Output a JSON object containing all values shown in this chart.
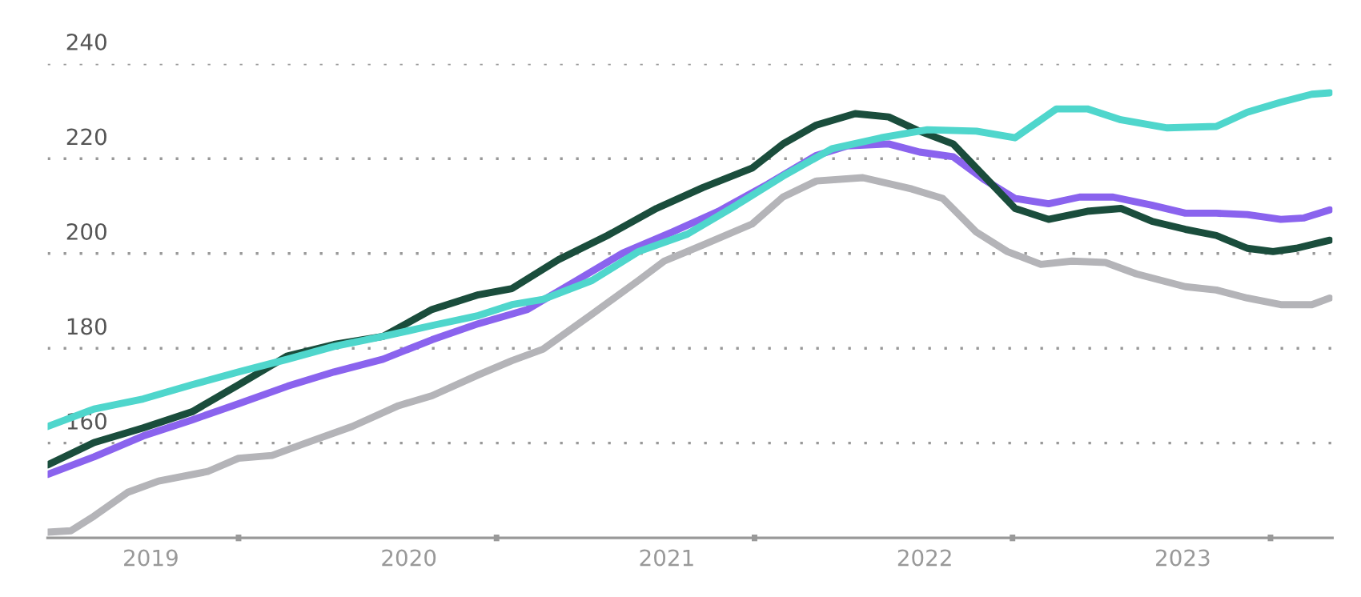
{
  "chart_data": {
    "type": "line",
    "xlim": [
      2018.6,
      2023.58
    ],
    "xticks": [
      2019,
      2020,
      2021,
      2022,
      2023,
      {
        "value": 2019.34,
        "label": null
      },
      {
        "value": 2020.34,
        "label": null
      },
      {
        "value": 2021.34,
        "label": null
      },
      {
        "value": 2022.34,
        "label": null
      },
      {
        "value": 2023.34,
        "label": null
      }
    ],
    "ylim": [
      140,
      240
    ],
    "yticks": [
      160,
      180,
      200,
      220,
      240
    ],
    "grid": "y",
    "line_style": "solid",
    "series": [
      {
        "color": "#b4b4b8",
        "x": [
          2018.6,
          2018.69,
          2018.78,
          2018.91,
          2019.03,
          2019.22,
          2019.34,
          2019.47,
          2019.59,
          2019.78,
          2019.96,
          2020.09,
          2020.27,
          2020.4,
          2020.52,
          2020.71,
          2020.89,
          2020.99,
          2021.14,
          2021.33,
          2021.45,
          2021.58,
          2021.76,
          2021.95,
          2022.07,
          2022.2,
          2022.32,
          2022.45,
          2022.57,
          2022.7,
          2022.82,
          2023.01,
          2023.13,
          2023.25,
          2023.38,
          2023.5,
          2023.57
        ],
        "values": [
          141.2,
          141.5,
          144.6,
          149.6,
          152,
          154,
          156.8,
          157.4,
          159.8,
          163.5,
          167.9,
          170,
          174.4,
          177.4,
          179.8,
          187.2,
          194.3,
          198.4,
          201.8,
          206.2,
          211.9,
          215.3,
          216,
          213.6,
          211.6,
          204.5,
          200.4,
          197.7,
          198.4,
          198.1,
          195.7,
          193,
          192.3,
          190.6,
          189.2,
          189.2,
          190.6
        ]
      },
      {
        "color": "#8a63ee",
        "x": [
          2018.6,
          2018.78,
          2018.97,
          2019.16,
          2019.34,
          2019.53,
          2019.71,
          2019.9,
          2020.09,
          2020.27,
          2020.46,
          2020.65,
          2020.83,
          2021.02,
          2021.2,
          2021.39,
          2021.58,
          2021.7,
          2021.86,
          2021.98,
          2022.11,
          2022.23,
          2022.35,
          2022.48,
          2022.6,
          2022.73,
          2022.88,
          2023.01,
          2023.13,
          2023.25,
          2023.38,
          2023.47,
          2023.57
        ],
        "values": [
          153.4,
          157.1,
          161.5,
          164.9,
          168.3,
          172,
          175,
          177.7,
          181.8,
          185.2,
          188.2,
          194.3,
          200.1,
          204.5,
          208.9,
          214.6,
          220.7,
          222.7,
          223.1,
          221.4,
          220.4,
          215.6,
          211.6,
          210.5,
          211.9,
          211.9,
          210.2,
          208.5,
          208.5,
          208.2,
          207.2,
          207.5,
          209.2
        ]
      },
      {
        "color": "#1a4d3c",
        "x": [
          2018.6,
          2018.78,
          2018.97,
          2019.16,
          2019.34,
          2019.53,
          2019.71,
          2019.9,
          2020.09,
          2020.27,
          2020.4,
          2020.58,
          2020.77,
          2020.96,
          2021.14,
          2021.33,
          2021.45,
          2021.58,
          2021.73,
          2021.86,
          2021.98,
          2022.11,
          2022.23,
          2022.35,
          2022.48,
          2022.63,
          2022.76,
          2022.88,
          2023.01,
          2023.13,
          2023.25,
          2023.35,
          2023.44,
          2023.57
        ],
        "values": [
          155.4,
          160.1,
          163.2,
          166.6,
          172.3,
          178.4,
          180.8,
          182.5,
          188.2,
          191.3,
          192.6,
          198.7,
          203.8,
          209.5,
          213.9,
          218,
          223.1,
          227.1,
          229.5,
          228.8,
          225.8,
          223.1,
          216.3,
          209.5,
          207.2,
          208.9,
          209.5,
          206.8,
          205.1,
          203.8,
          201.1,
          200.4,
          201.1,
          202.8
        ]
      },
      {
        "color": "#4fd6cc",
        "x": [
          2018.6,
          2018.78,
          2018.97,
          2019.16,
          2019.34,
          2019.53,
          2019.71,
          2019.9,
          2020.09,
          2020.27,
          2020.4,
          2020.52,
          2020.71,
          2020.89,
          2021.08,
          2021.27,
          2021.45,
          2021.64,
          2021.83,
          2022.01,
          2022.2,
          2022.35,
          2022.51,
          2022.63,
          2022.76,
          2022.94,
          2023.13,
          2023.25,
          2023.38,
          2023.5,
          2023.57
        ],
        "values": [
          163.5,
          167.2,
          169.3,
          172.3,
          175,
          177.7,
          180.4,
          182.5,
          184.8,
          186.9,
          189.2,
          190.3,
          194.3,
          200.4,
          204.1,
          210.2,
          216.3,
          222.1,
          224.4,
          226.1,
          225.8,
          224.4,
          230.5,
          230.5,
          228.2,
          226.5,
          226.8,
          229.8,
          231.9,
          233.6,
          233.9
        ]
      }
    ]
  }
}
